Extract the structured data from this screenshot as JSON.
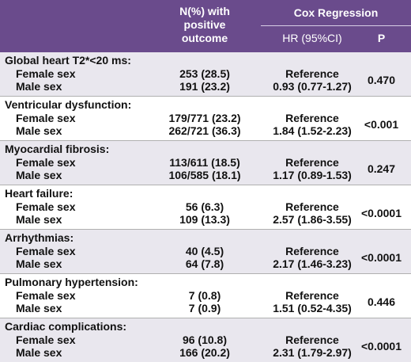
{
  "header": {
    "outcome_line1": "N(%) with",
    "outcome_line2": "positive",
    "outcome_line3": "outcome",
    "cox_title": "Cox Regression",
    "hr_label": "HR (95%CI)",
    "p_label": "P"
  },
  "sections": [
    {
      "title": "Global heart T2*<20 ms:",
      "female_label": "Female sex",
      "male_label": "Male sex",
      "female_n": "253 (28.5)",
      "male_n": "191 (23.2)",
      "female_hr": "Reference",
      "male_hr": "0.93 (0.77-1.27)",
      "p": "0.470"
    },
    {
      "title": "Ventricular dysfunction:",
      "female_label": "Female sex",
      "male_label": "Male sex",
      "female_n": "179/771 (23.2)",
      "male_n": "262/721 (36.3)",
      "female_hr": "Reference",
      "male_hr": "1.84 (1.52-2.23)",
      "p": "<0.001"
    },
    {
      "title": "Myocardial fibrosis:",
      "female_label": "Female sex",
      "male_label": "Male sex",
      "female_n": "113/611 (18.5)",
      "male_n": "106/585 (18.1)",
      "female_hr": "Reference",
      "male_hr": "1.17 (0.89-1.53)",
      "p": "0.247"
    },
    {
      "title": "Heart failure:",
      "female_label": "Female sex",
      "male_label": "Male sex",
      "female_n": "56 (6.3)",
      "male_n": "109 (13.3)",
      "female_hr": "Reference",
      "male_hr": "2.57 (1.86-3.55)",
      "p": "<0.0001"
    },
    {
      "title": "Arrhythmias:",
      "female_label": "Female sex",
      "male_label": "Male sex",
      "female_n": "40 (4.5)",
      "male_n": "64 (7.8)",
      "female_hr": "Reference",
      "male_hr": "2.17 (1.46-3.23)",
      "p": "<0.0001"
    },
    {
      "title": "Pulmonary hypertension:",
      "female_label": "Female sex",
      "male_label": "Male sex",
      "female_n": "7 (0.8)",
      "male_n": "7 (0.9)",
      "female_hr": "Reference",
      "male_hr": "1.51 (0.52-4.35)",
      "p": "0.446"
    },
    {
      "title": "Cardiac complications:",
      "female_label": "Female sex",
      "male_label": "Male sex",
      "female_n": "96 (10.8)",
      "male_n": "166 (20.2)",
      "female_hr": "Reference",
      "male_hr": "2.31 (1.79-2.97)",
      "p": "<0.0001"
    }
  ],
  "colors": {
    "header_bg": "#6a4b8c",
    "header_text": "#ffffff",
    "shaded_row": "#e9e7ee"
  }
}
